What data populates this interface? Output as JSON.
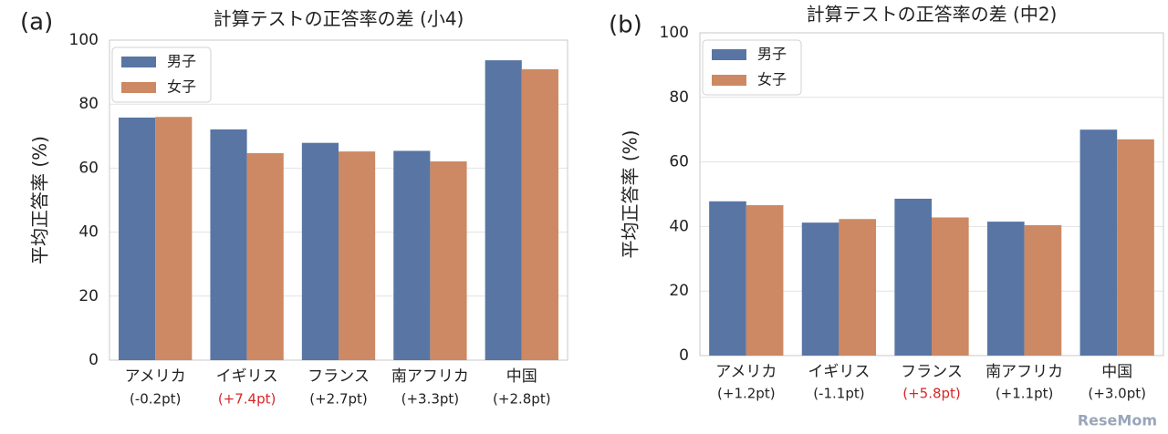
{
  "chart_data": [
    {
      "type": "bar",
      "panel_label": "(a)",
      "title": "計算テストの正答率の差 (小4)",
      "y_label": "平均正答率 (%)",
      "categories": [
        "アメリカ",
        "イギリス",
        "フランス",
        "南アフリカ",
        "中国"
      ],
      "category_notes": [
        "(-0.2pt)",
        "(+7.4pt)",
        "(+2.7pt)",
        "(+3.3pt)",
        "(+2.8pt)"
      ],
      "note_colors": [
        "#222222",
        "#d62728",
        "#222222",
        "#222222",
        "#222222"
      ],
      "series": [
        {
          "name": "男子",
          "color": "#5875a4",
          "values": [
            75.8,
            72.1,
            67.9,
            65.4,
            93.7
          ]
        },
        {
          "name": "女子",
          "color": "#cc8963",
          "values": [
            76.0,
            64.7,
            65.2,
            62.1,
            90.9
          ]
        }
      ],
      "ylim": [
        0,
        100
      ],
      "yticks": [
        0,
        20,
        40,
        60,
        80,
        100
      ],
      "grid": true,
      "legend": "upper-left"
    },
    {
      "type": "bar",
      "panel_label": "(b)",
      "title": "計算テストの正答率の差 (中2)",
      "y_label": "平均正答率 (%)",
      "categories": [
        "アメリカ",
        "イギリス",
        "フランス",
        "南アフリカ",
        "中国"
      ],
      "category_notes": [
        "(+1.2pt)",
        "(-1.1pt)",
        "(+5.8pt)",
        "(+1.1pt)",
        "(+3.0pt)"
      ],
      "note_colors": [
        "#222222",
        "#222222",
        "#d62728",
        "#222222",
        "#222222"
      ],
      "series": [
        {
          "name": "男子",
          "color": "#5875a4",
          "values": [
            47.8,
            41.2,
            48.6,
            41.5,
            70.0
          ]
        },
        {
          "name": "女子",
          "color": "#cc8963",
          "values": [
            46.6,
            42.3,
            42.8,
            40.4,
            67.0
          ]
        }
      ],
      "ylim": [
        0,
        100
      ],
      "yticks": [
        0,
        20,
        40,
        60,
        80,
        100
      ],
      "grid": true,
      "legend": "upper-left"
    }
  ],
  "watermark": "ReseMom"
}
